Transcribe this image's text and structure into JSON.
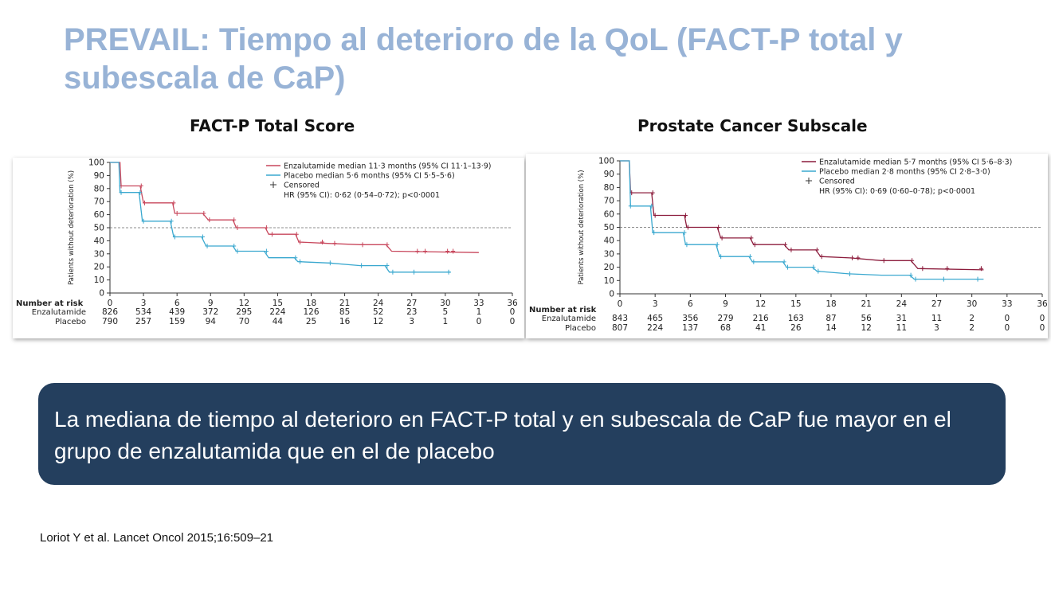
{
  "slide": {
    "title": "PREVAIL: Tiempo al deterioro de la QoL (FACT-P total y subescala de CaP)",
    "callout": "La mediana de tiempo  al deterioro  en FACT-P total y en subescala de CaP fue mayor en el grupo de enzalutamida que en el de placebo",
    "reference": "Loriot Y et al. Lancet Oncol 2015;16:509–21"
  },
  "colors": {
    "title": "#98b3d6",
    "callout_bg": "#243f5e",
    "enzalutamide_total": "#c8475c",
    "enzalutamide_subscale": "#8c1c3c",
    "placebo": "#3aa8cf",
    "reference_line": "#6a6a6a"
  },
  "chart_data": [
    {
      "type": "line",
      "heading": "FACT-P Total Score",
      "ylabel": "Patients without deterioration (%)",
      "xlabel": "",
      "ylim": [
        0,
        100
      ],
      "xlim": [
        0,
        36
      ],
      "yticks": [
        0,
        10,
        20,
        30,
        40,
        50,
        60,
        70,
        80,
        90,
        100
      ],
      "xticks": [
        0,
        3,
        6,
        9,
        12,
        15,
        18,
        21,
        24,
        27,
        30,
        33,
        36
      ],
      "reference_y": 50,
      "legend_position": "top-right",
      "legend": {
        "enzalutamide": "Enzalutamide median 11·3 months (95% CI 11·1–13·9)",
        "placebo": "Placebo median 5·6 months (95% CI 5·5–5·6)",
        "censored": "Censored",
        "hr": "HR (95% CI): 0·62 (0·54–0·72); p<0·0001"
      },
      "series": [
        {
          "name": "Enzalutamide",
          "color": "#c8475c",
          "x": [
            0,
            0.9,
            1.0,
            2.7,
            3.0,
            5.6,
            5.8,
            8.3,
            8.8,
            11.0,
            11.3,
            13.9,
            14.2,
            16.6,
            16.9,
            19.5,
            22.4,
            24.7,
            25.2,
            33.0
          ],
          "y": [
            100,
            100,
            82,
            82,
            69,
            69,
            61,
            61,
            56,
            56,
            50,
            50,
            45,
            45,
            39,
            38,
            37,
            37,
            32,
            31
          ],
          "censored_x": [
            1.0,
            2.8,
            3.1,
            5.7,
            6.0,
            8.4,
            8.9,
            11.1,
            11.4,
            14.0,
            14.5,
            16.7,
            17.0,
            19.0,
            20.1,
            22.6,
            24.8,
            27.5,
            28.2,
            30.2,
            30.7
          ]
        },
        {
          "name": "Placebo",
          "color": "#3aa8cf",
          "x": [
            0,
            0.8,
            0.9,
            2.6,
            2.9,
            5.4,
            5.7,
            8.2,
            8.6,
            11.0,
            11.3,
            13.8,
            14.2,
            16.5,
            16.8,
            19.6,
            22.4,
            24.6,
            25.0,
            30.5
          ],
          "y": [
            100,
            100,
            77,
            77,
            55,
            55,
            43,
            43,
            36,
            36,
            32,
            32,
            27,
            27,
            24,
            23,
            21,
            21,
            16,
            16
          ],
          "censored_x": [
            1.0,
            2.7,
            3.0,
            5.5,
            5.8,
            8.3,
            8.7,
            11.1,
            11.4,
            14.0,
            16.6,
            17.0,
            19.7,
            22.5,
            24.8,
            25.3,
            27.2,
            30.3
          ]
        }
      ],
      "risk_table": {
        "title": "Number at risk",
        "rows": [
          {
            "label": "Enzalutamide",
            "values": [
              826,
              534,
              439,
              372,
              295,
              224,
              126,
              85,
              52,
              23,
              5,
              1,
              0
            ]
          },
          {
            "label": "Placebo",
            "values": [
              790,
              257,
              159,
              94,
              70,
              44,
              25,
              16,
              12,
              3,
              1,
              0,
              0
            ]
          }
        ]
      }
    },
    {
      "type": "line",
      "heading": "Prostate Cancer Subscale",
      "ylabel": "Patients without deterioration (%)",
      "xlabel": "",
      "ylim": [
        0,
        100
      ],
      "xlim": [
        0,
        36
      ],
      "yticks": [
        0,
        10,
        20,
        30,
        40,
        50,
        60,
        70,
        80,
        90,
        100
      ],
      "xticks": [
        0,
        3,
        6,
        9,
        12,
        15,
        18,
        21,
        24,
        27,
        30,
        33,
        36
      ],
      "reference_y": 50,
      "legend_position": "top-right",
      "legend": {
        "enzalutamide": "Enzalutamide median 5·7 months (95% CI 5·6–8·3)",
        "placebo": "Placebo median 2·8 months (95% CI 2·8–3·0)",
        "censored": "Censored",
        "hr": "HR (95% CI): 0·69 (0·60–0·78); p<0·0001"
      },
      "series": [
        {
          "name": "Enzalutamide",
          "color": "#8c1c3c",
          "x": [
            0,
            0.8,
            0.9,
            2.7,
            2.9,
            5.5,
            5.7,
            8.3,
            8.6,
            11.1,
            11.4,
            14.0,
            14.4,
            16.7,
            17.1,
            19.6,
            22.3,
            24.8,
            25.4,
            31.0
          ],
          "y": [
            100,
            100,
            76,
            76,
            59,
            59,
            50,
            50,
            42,
            42,
            37,
            37,
            33,
            33,
            28,
            27,
            25,
            25,
            19,
            18
          ],
          "censored_x": [
            1.0,
            2.8,
            3.0,
            5.6,
            5.8,
            8.4,
            8.7,
            11.2,
            11.5,
            14.1,
            14.6,
            16.8,
            17.2,
            19.8,
            20.3,
            22.5,
            24.9,
            25.8,
            27.9,
            30.8
          ]
        },
        {
          "name": "Placebo",
          "color": "#3aa8cf",
          "x": [
            0,
            0.8,
            0.9,
            2.6,
            2.8,
            5.4,
            5.6,
            8.2,
            8.5,
            11.0,
            11.3,
            13.9,
            14.2,
            16.4,
            16.8,
            19.5,
            22.3,
            24.7,
            25.1,
            31.0
          ],
          "y": [
            100,
            100,
            66,
            66,
            46,
            46,
            37,
            37,
            28,
            28,
            24,
            24,
            20,
            20,
            17,
            15,
            14,
            14,
            11,
            11
          ],
          "censored_x": [
            0.9,
            2.7,
            2.9,
            5.5,
            5.7,
            8.3,
            8.6,
            11.1,
            11.4,
            14.0,
            14.3,
            16.5,
            16.9,
            19.6,
            24.8,
            25.2,
            27.6,
            30.5
          ]
        }
      ],
      "risk_table": {
        "title": "Number at risk",
        "rows": [
          {
            "label": "Enzalutamide",
            "values": [
              843,
              465,
              356,
              279,
              216,
              163,
              87,
              56,
              31,
              11,
              2,
              0,
              0
            ]
          },
          {
            "label": "Placebo",
            "values": [
              807,
              224,
              137,
              68,
              41,
              26,
              14,
              12,
              11,
              3,
              2,
              0,
              0
            ]
          }
        ]
      }
    }
  ]
}
